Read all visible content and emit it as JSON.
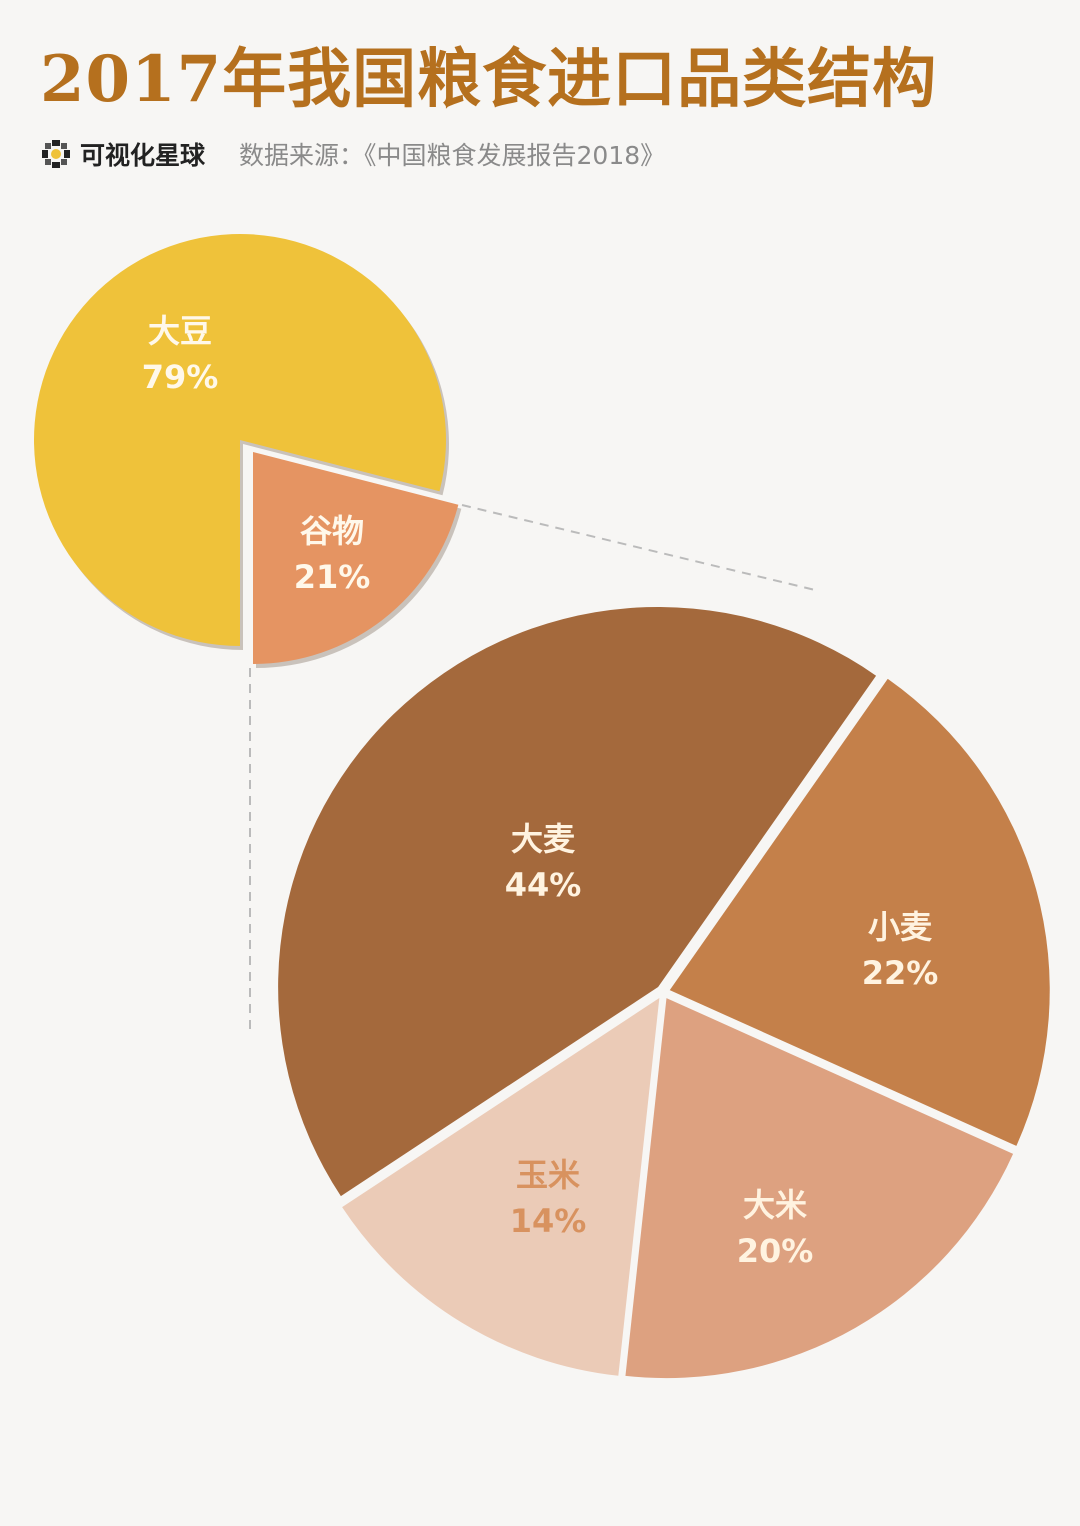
{
  "header": {
    "title": "2017年我国粮食进口品类结构",
    "brand": "可视化星球",
    "source": "数据来源：《中国粮食发展报告2018》"
  },
  "chart_data": [
    {
      "type": "pie",
      "categories": [
        "大豆",
        "谷物"
      ],
      "values": [
        79,
        21
      ],
      "labels": [
        "79%",
        "21%"
      ],
      "colors": [
        "#efc23a",
        "#e59462"
      ],
      "exploded": "谷物"
    },
    {
      "type": "pie",
      "categories": [
        "大麦",
        "小麦",
        "大米",
        "玉米"
      ],
      "values": [
        44,
        22,
        20,
        14
      ],
      "labels": [
        "44%",
        "22%",
        "20%",
        "14%"
      ],
      "colors": [
        "#a4693c",
        "#c4804a",
        "#dda180",
        "#ebcbb7"
      ],
      "breakdown_of": "谷物"
    }
  ]
}
